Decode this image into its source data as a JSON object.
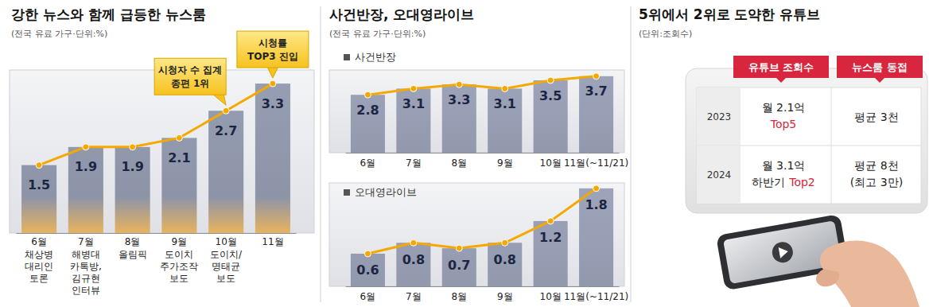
{
  "chart_data": [
    {
      "type": "bar",
      "title": "강한 뉴스와 함께 급등한 뉴스룸",
      "subtitle": "(전국 유료 가구·단위:%)",
      "categories": [
        "6월",
        "7월",
        "8월",
        "9월",
        "10월",
        "11월"
      ],
      "category_notes": [
        [
          "채상병",
          "대리인",
          "토론"
        ],
        [
          "해병대",
          "카톡방,",
          "김규현",
          "인터뷰"
        ],
        [
          "올림픽"
        ],
        [
          "도이치",
          "주가조작",
          "보도"
        ],
        [
          "도이치/",
          "명태균",
          "보도"
        ],
        []
      ],
      "series": [
        {
          "type": "bar",
          "color": "#8d94a8",
          "values": [
            1.5,
            1.9,
            1.9,
            2.1,
            2.7,
            3.3
          ]
        },
        {
          "type": "line",
          "color": "#f5a800",
          "marker": "circle",
          "values": [
            1.5,
            1.9,
            1.9,
            2.1,
            2.7,
            3.3
          ]
        }
      ],
      "ylim": [
        0,
        3.6
      ],
      "yticks": [],
      "tick_labels": "x",
      "data_labels": true,
      "annotations": [
        {
          "text": [
            "시청자 수 집계",
            "종편 1위"
          ],
          "x": "10월"
        },
        {
          "text": [
            "시청률",
            "TOP3 진입"
          ],
          "x": "11월"
        }
      ]
    },
    {
      "type": "bar",
      "title": "사건반장, 오대영라이브",
      "subtitle": "(전국 유료 가구·단위:%)",
      "categories": [
        "6월",
        "7월",
        "8월",
        "9월",
        "10월",
        "11월(~11/21)"
      ],
      "series": [
        {
          "name": "사건반장",
          "type": "bar",
          "color": "#9399ad",
          "values": [
            2.8,
            3.1,
            3.3,
            3.1,
            3.5,
            3.7
          ]
        },
        {
          "type": "line",
          "color": "#f5a800",
          "marker": "circle",
          "values": [
            2.8,
            3.1,
            3.3,
            3.1,
            3.5,
            3.7
          ]
        }
      ],
      "ylim": [
        0,
        4
      ],
      "yticks": [],
      "tick_labels": "x",
      "data_labels": true,
      "legend": "upper left"
    },
    {
      "type": "bar",
      "categories": [
        "6월",
        "7월",
        "8월",
        "9월",
        "10월",
        "11월(~11/21)"
      ],
      "series": [
        {
          "name": "오대영라이브",
          "type": "bar",
          "color": "#9399ad",
          "values": [
            0.6,
            0.8,
            0.7,
            0.8,
            1.2,
            1.8
          ]
        },
        {
          "type": "line",
          "color": "#f5a800",
          "marker": "circle",
          "values": [
            0.6,
            0.8,
            0.7,
            0.8,
            1.2,
            1.8
          ]
        }
      ],
      "ylim": [
        0,
        1.9
      ],
      "yticks": [],
      "tick_labels": "x",
      "data_labels": true,
      "legend": "upper left"
    }
  ],
  "table": {
    "title": "5위에서 2위로 도약한 유튜브",
    "subtitle": "(단위:조회수)",
    "columns": [
      "유튜브 조회수",
      "뉴스룸 동접"
    ],
    "rows": [
      {
        "year": "2023",
        "views": "월 2.1억",
        "rank": "Top5",
        "live": [
          "평균 3천"
        ]
      },
      {
        "year": "2024",
        "views": "월 3.1억",
        "rank_period": "하반기",
        "rank": "Top2",
        "live": [
          "평균 8천",
          "(최고 3만)"
        ]
      }
    ]
  }
}
